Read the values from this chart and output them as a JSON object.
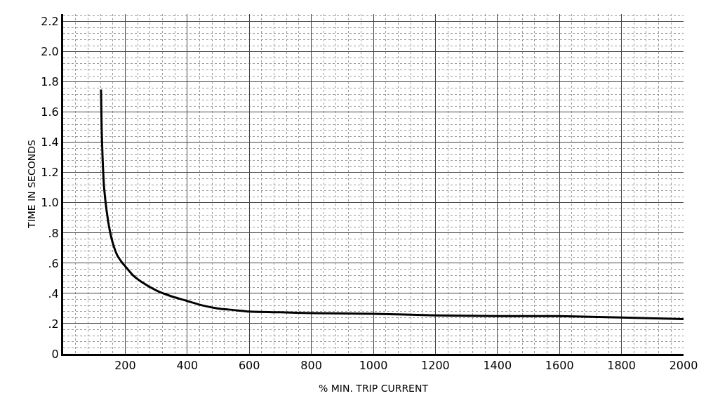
{
  "chart_data": {
    "type": "line",
    "xlabel": "% MIN. TRIP CURRENT",
    "ylabel": "TIME IN SECONDS",
    "x": [
      122,
      124,
      127,
      132,
      140,
      150,
      162,
      175,
      188,
      200,
      225,
      250,
      300,
      350,
      400,
      450,
      500,
      550,
      600,
      700,
      800,
      1000,
      1200,
      1400,
      1600,
      1800,
      2000
    ],
    "series": [
      {
        "color": "#000000",
        "values": [
          1.75,
          1.5,
          1.3,
          1.1,
          0.95,
          0.82,
          0.72,
          0.65,
          0.61,
          0.58,
          0.52,
          0.48,
          0.42,
          0.38,
          0.35,
          0.32,
          0.3,
          0.29,
          0.28,
          0.275,
          0.27,
          0.265,
          0.255,
          0.25,
          0.25,
          0.24,
          0.23
        ]
      }
    ],
    "xlim": [
      0,
      2000
    ],
    "ylim": [
      0,
      2.25
    ],
    "xticks": [
      200,
      400,
      600,
      800,
      1000,
      1200,
      1400,
      1600,
      1800,
      2000
    ],
    "yticks": [
      0,
      {
        "value": 0.2,
        "label": ".2"
      },
      {
        "value": 0.4,
        "label": ".4"
      },
      {
        "value": 0.6,
        "label": ".6"
      },
      {
        "value": 0.8,
        "label": ".8"
      },
      {
        "value": 1.0,
        "label": "1.0"
      },
      {
        "value": 1.2,
        "label": "1.2"
      },
      {
        "value": 1.4,
        "label": "1.4"
      },
      {
        "value": 1.6,
        "label": "1.6"
      },
      {
        "value": 1.8,
        "label": "1.8"
      },
      {
        "value": 2.0,
        "label": "2.0"
      },
      {
        "value": 2.2,
        "label": "2.2"
      }
    ],
    "grid": true,
    "marker": "none",
    "line_style": "solid"
  }
}
